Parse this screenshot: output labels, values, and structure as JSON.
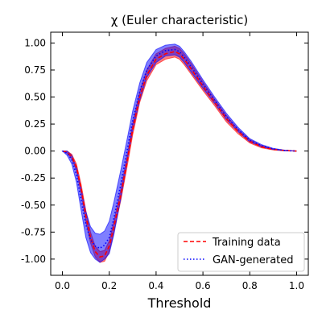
{
  "chart_data": {
    "type": "line",
    "title": "χ (Euler characteristic)",
    "xlabel": "Threshold",
    "ylabel": "",
    "xlim": [
      -0.05,
      1.05
    ],
    "ylim": [
      -1.15,
      1.1
    ],
    "xticks": [
      "0.0",
      "0.2",
      "0.4",
      "0.6",
      "0.8",
      "1.0"
    ],
    "yticks": [
      "-1.00",
      "-0.75",
      "-0.50",
      "-0.25",
      "0.00",
      "0.25",
      "0.50",
      "0.75",
      "1.00"
    ],
    "xtick_values": [
      0.0,
      0.2,
      0.4,
      0.6,
      0.8,
      1.0
    ],
    "ytick_values": [
      -1.0,
      -0.75,
      -0.5,
      -0.25,
      0.0,
      0.25,
      0.5,
      0.75,
      1.0
    ],
    "grid": false,
    "legend_position": "lower-right",
    "series": [
      {
        "name": "Training data",
        "color": "#ff0000",
        "band_color": "#ff0000",
        "line_style": "dashed",
        "x": [
          0.0,
          0.02,
          0.04,
          0.06,
          0.08,
          0.1,
          0.12,
          0.14,
          0.16,
          0.18,
          0.2,
          0.22,
          0.25,
          0.28,
          0.3,
          0.33,
          0.36,
          0.4,
          0.44,
          0.48,
          0.5,
          0.52,
          0.55,
          0.6,
          0.65,
          0.7,
          0.75,
          0.8,
          0.85,
          0.9,
          0.95,
          1.0
        ],
        "y": [
          0.0,
          -0.01,
          -0.05,
          -0.15,
          -0.35,
          -0.6,
          -0.8,
          -0.93,
          -0.98,
          -0.97,
          -0.88,
          -0.7,
          -0.4,
          -0.05,
          0.2,
          0.5,
          0.7,
          0.85,
          0.9,
          0.92,
          0.9,
          0.85,
          0.76,
          0.6,
          0.45,
          0.3,
          0.18,
          0.09,
          0.04,
          0.015,
          0.005,
          0.0
        ],
        "band": [
          0.0,
          0.01,
          0.02,
          0.03,
          0.04,
          0.05,
          0.05,
          0.05,
          0.05,
          0.05,
          0.05,
          0.05,
          0.05,
          0.05,
          0.05,
          0.05,
          0.05,
          0.05,
          0.05,
          0.05,
          0.05,
          0.05,
          0.05,
          0.04,
          0.03,
          0.03,
          0.02,
          0.015,
          0.01,
          0.005,
          0.003,
          0.0
        ]
      },
      {
        "name": "GAN-generated",
        "color": "#0000ff",
        "band_color": "#0000ff",
        "line_style": "dotted",
        "x": [
          0.0,
          0.02,
          0.04,
          0.06,
          0.08,
          0.1,
          0.12,
          0.14,
          0.16,
          0.18,
          0.2,
          0.22,
          0.25,
          0.28,
          0.3,
          0.33,
          0.36,
          0.4,
          0.44,
          0.48,
          0.5,
          0.52,
          0.55,
          0.6,
          0.65,
          0.7,
          0.75,
          0.8,
          0.85,
          0.9,
          0.95,
          1.0
        ],
        "y": [
          0.0,
          -0.02,
          -0.08,
          -0.22,
          -0.45,
          -0.68,
          -0.82,
          -0.88,
          -0.9,
          -0.87,
          -0.8,
          -0.62,
          -0.3,
          0.05,
          0.28,
          0.55,
          0.75,
          0.88,
          0.93,
          0.94,
          0.92,
          0.87,
          0.78,
          0.62,
          0.47,
          0.32,
          0.2,
          0.1,
          0.05,
          0.02,
          0.005,
          0.0
        ],
        "band": [
          0.0,
          0.02,
          0.04,
          0.07,
          0.1,
          0.12,
          0.12,
          0.12,
          0.13,
          0.13,
          0.15,
          0.15,
          0.13,
          0.1,
          0.09,
          0.08,
          0.07,
          0.06,
          0.05,
          0.05,
          0.05,
          0.05,
          0.05,
          0.04,
          0.03,
          0.03,
          0.02,
          0.015,
          0.01,
          0.005,
          0.003,
          0.0
        ]
      }
    ]
  }
}
